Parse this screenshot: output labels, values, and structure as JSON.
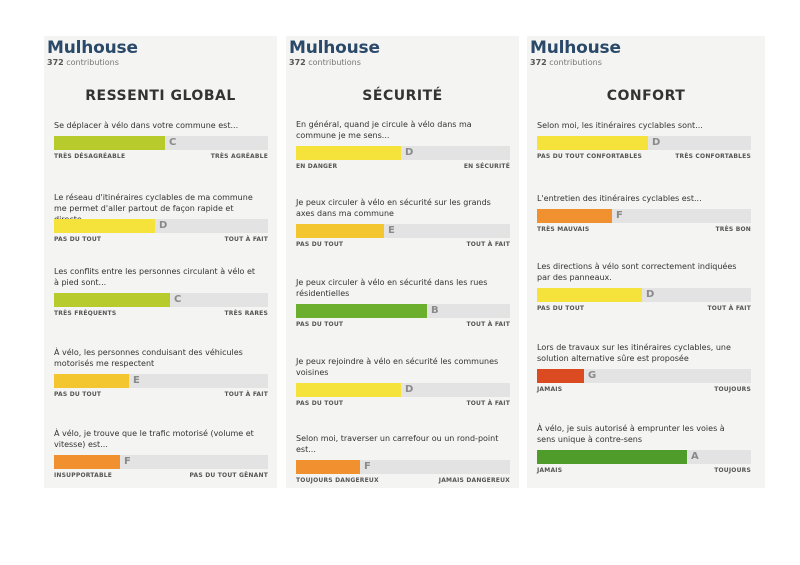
{
  "colors": {
    "A": "#4f9c2a",
    "B": "#6cae2e",
    "C": "#b7cc2c",
    "D": "#f5e23a",
    "E": "#f3c52e",
    "F": "#f0902e",
    "G": "#dc4a22"
  },
  "panels": [
    {
      "city": "Mulhouse",
      "contrib_count": "372",
      "contrib_label": "contributions",
      "heading": "RESSENTI GLOBAL",
      "questions": [
        {
          "text": "Se déplacer à vélo dans votre commune est...",
          "grade": "C",
          "level": 0.52,
          "left": "TRÈS DÉSAGRÉABLE",
          "right": "TRÈS AGRÉABLE"
        },
        {
          "text": "Le réseau d'itinéraires cyclables de ma commune me permet d'aller partout de façon rapide et directe.",
          "grade": "D",
          "level": 0.47,
          "left": "PAS DU TOUT",
          "right": "TOUT À FAIT"
        },
        {
          "text": "Les conflits entre les personnes circulant à vélo et à pied sont...",
          "grade": "C",
          "level": 0.54,
          "left": "TRÈS FRÉQUENTS",
          "right": "TRÈS RARES"
        },
        {
          "text": "À vélo, les personnes conduisant des véhicules motorisés me respectent",
          "grade": "E",
          "level": 0.35,
          "left": "PAS DU TOUT",
          "right": "TOUT À FAIT"
        },
        {
          "text": "À vélo, je trouve que le trafic motorisé (volume et vitesse) est...",
          "grade": "F",
          "level": 0.31,
          "left": "INSUPPORTABLE",
          "right": "PAS DU TOUT GÊNANT"
        }
      ]
    },
    {
      "city": "Mulhouse",
      "contrib_count": "372",
      "contrib_label": "contributions",
      "heading": "SÉCURITÉ",
      "questions": [
        {
          "text": "En général, quand je circule à vélo dans ma commune je me sens...",
          "grade": "D",
          "level": 0.49,
          "left": "EN DANGER",
          "right": "EN SÉCURITÉ"
        },
        {
          "text": "Je peux circuler à vélo en sécurité sur les grands axes dans ma commune",
          "grade": "E",
          "level": 0.41,
          "left": "PAS DU TOUT",
          "right": "TOUT À FAIT"
        },
        {
          "text": "Je peux circuler à vélo en sécurité dans les rues résidentielles",
          "grade": "B",
          "level": 0.61,
          "left": "PAS DU TOUT",
          "right": "TOUT À FAIT"
        },
        {
          "text": "Je peux rejoindre à vélo en sécurité les communes voisines",
          "grade": "D",
          "level": 0.49,
          "left": "PAS DU TOUT",
          "right": "TOUT À FAIT"
        },
        {
          "text": "Selon moi, traverser un carrefour ou un rond-point est...",
          "grade": "F",
          "level": 0.3,
          "left": "TOUJOURS DANGEREUX",
          "right": "JAMAIS DANGEREUX"
        }
      ]
    },
    {
      "city": "Mulhouse",
      "contrib_count": "372",
      "contrib_label": "contributions",
      "heading": "CONFORT",
      "questions": [
        {
          "text": "Selon moi, les itinéraires cyclables sont...",
          "grade": "D",
          "level": 0.52,
          "left": "PAS DU TOUT CONFORTABLES",
          "right": "TRÈS CONFORTABLES"
        },
        {
          "text": "L'entretien des itinéraires cyclables est...",
          "grade": "F",
          "level": 0.35,
          "left": "TRÈS MAUVAIS",
          "right": "TRÈS BON"
        },
        {
          "text": "Les directions à vélo sont correctement indiquées par des panneaux.",
          "grade": "D",
          "level": 0.49,
          "left": "PAS DU TOUT",
          "right": "TOUT À FAIT"
        },
        {
          "text": "Lors de travaux sur les itinéraires cyclables, une solution alternative sûre est proposée",
          "grade": "G",
          "level": 0.22,
          "left": "JAMAIS",
          "right": "TOUJOURS"
        },
        {
          "text": "À vélo, je suis autorisé à emprunter les voies à sens unique à contre-sens",
          "grade": "A",
          "level": 0.7,
          "left": "JAMAIS",
          "right": "TOUJOURS"
        }
      ]
    }
  ]
}
